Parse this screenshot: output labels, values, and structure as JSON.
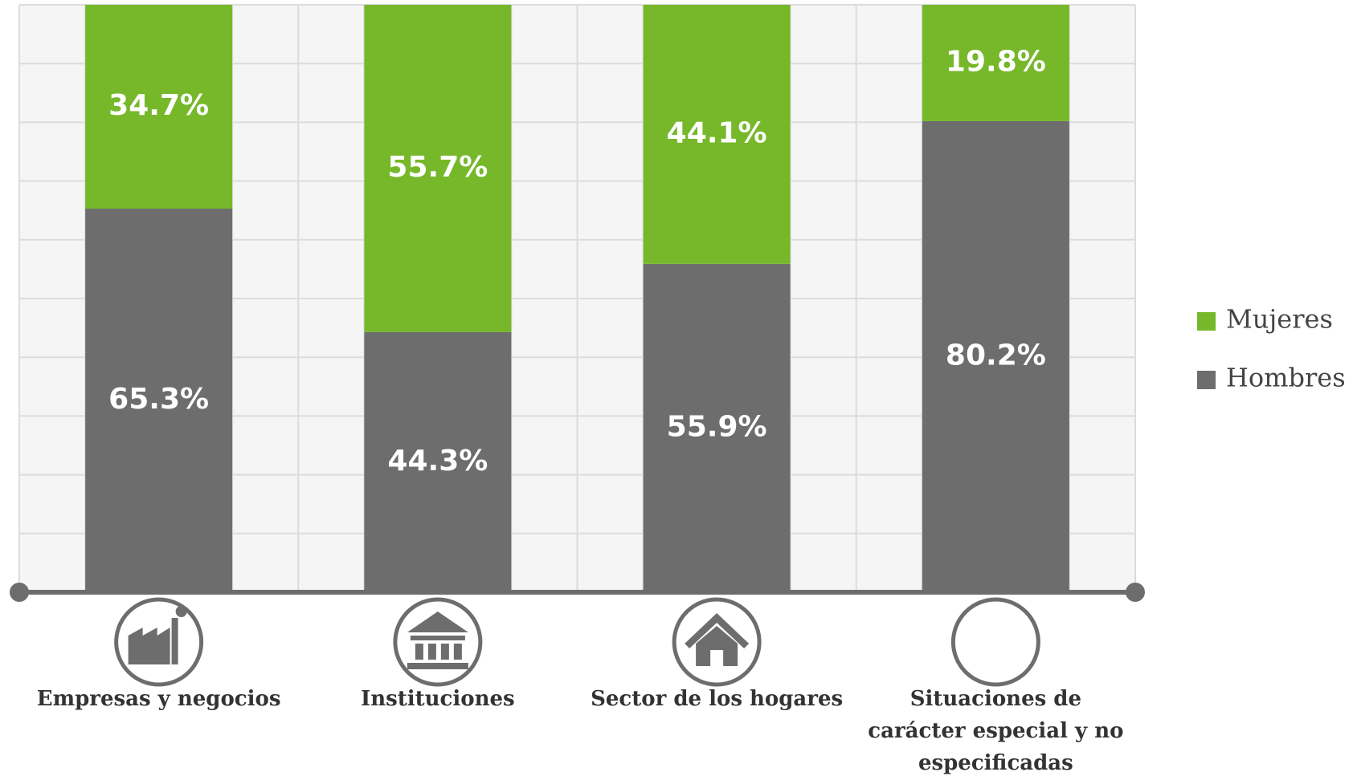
{
  "chart_data": {
    "type": "stacked_bar",
    "categories": [
      "Empresas y negocios",
      "Instituciones",
      "Sector de los hogares",
      "Situaciones de carácter especial y no especificadas"
    ],
    "series": [
      {
        "name": "Hombres",
        "color": "#6d6d6d",
        "values": [
          65.3,
          44.3,
          55.9,
          80.2
        ],
        "value_labels": [
          "65.3%",
          "44.3%",
          "55.9%",
          "80.2%"
        ]
      },
      {
        "name": "Mujeres",
        "color": "#76b82a",
        "values": [
          34.7,
          55.7,
          44.1,
          19.8
        ],
        "value_labels": [
          "34.7%",
          "55.7%",
          "44.1%",
          "19.8%"
        ]
      }
    ],
    "ylim": [
      0,
      100
    ],
    "yticks": [
      0,
      10,
      20,
      30,
      40,
      50,
      60,
      70,
      80,
      90,
      100
    ],
    "grid": true,
    "legend": "right"
  }
}
